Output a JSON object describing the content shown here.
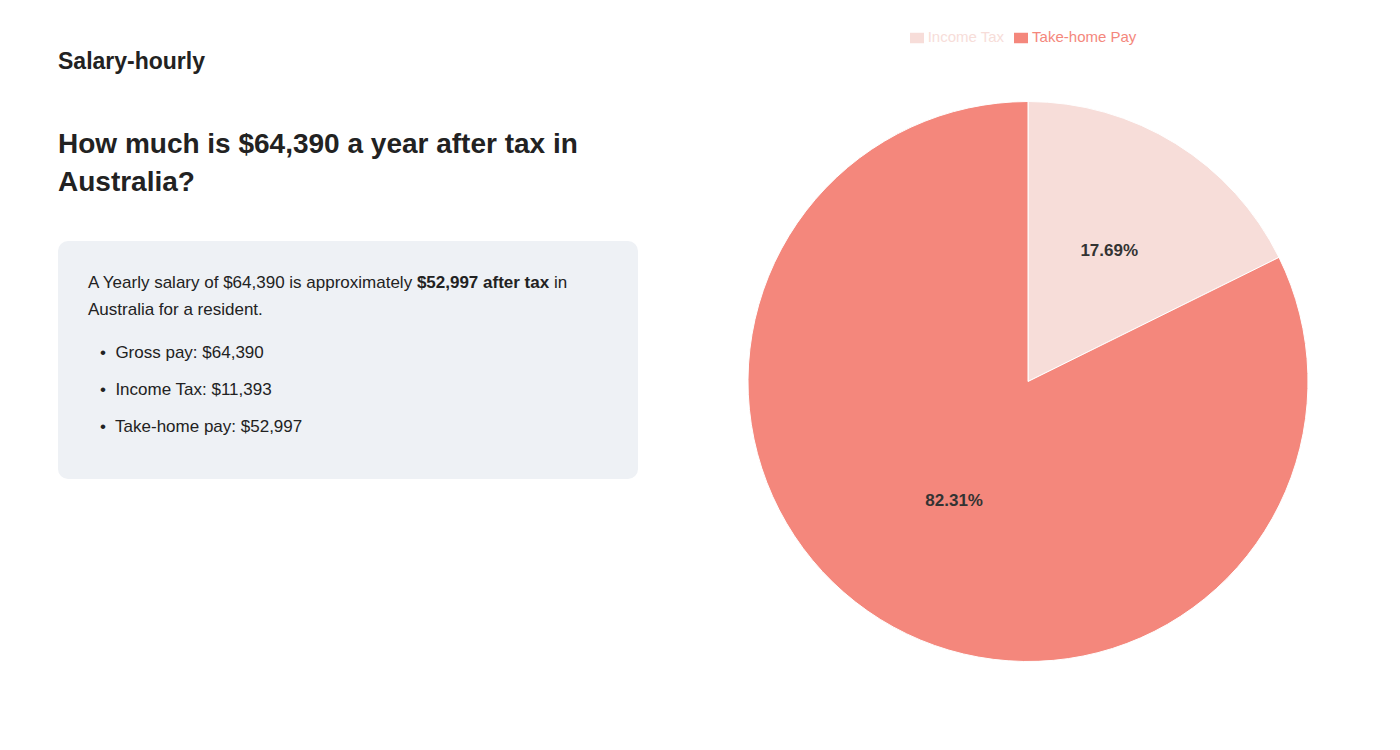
{
  "chart_data": {
    "type": "pie",
    "title": "How much is $64,390 a year after tax in\nAustralia?",
    "annotations": [
      "Salary-hourly",
      "A Yearly salary of $64,390 is approximately ",
      "$52,997 after tax",
      " in",
      "Australia for a resident.",
      "•  Gross pay: $64,390",
      "•  Income Tax: $11,393",
      "•  Take-home pay: $52,997"
    ],
    "categories": [
      "Income Tax",
      "Take-home Pay"
    ],
    "values": [
      17.69,
      82.31
    ],
    "value_labels": [
      "17.69%",
      "82.31%"
    ],
    "colors": [
      "#f7ddd9",
      "#f4877c"
    ],
    "data_labels": true,
    "legend": "top"
  }
}
